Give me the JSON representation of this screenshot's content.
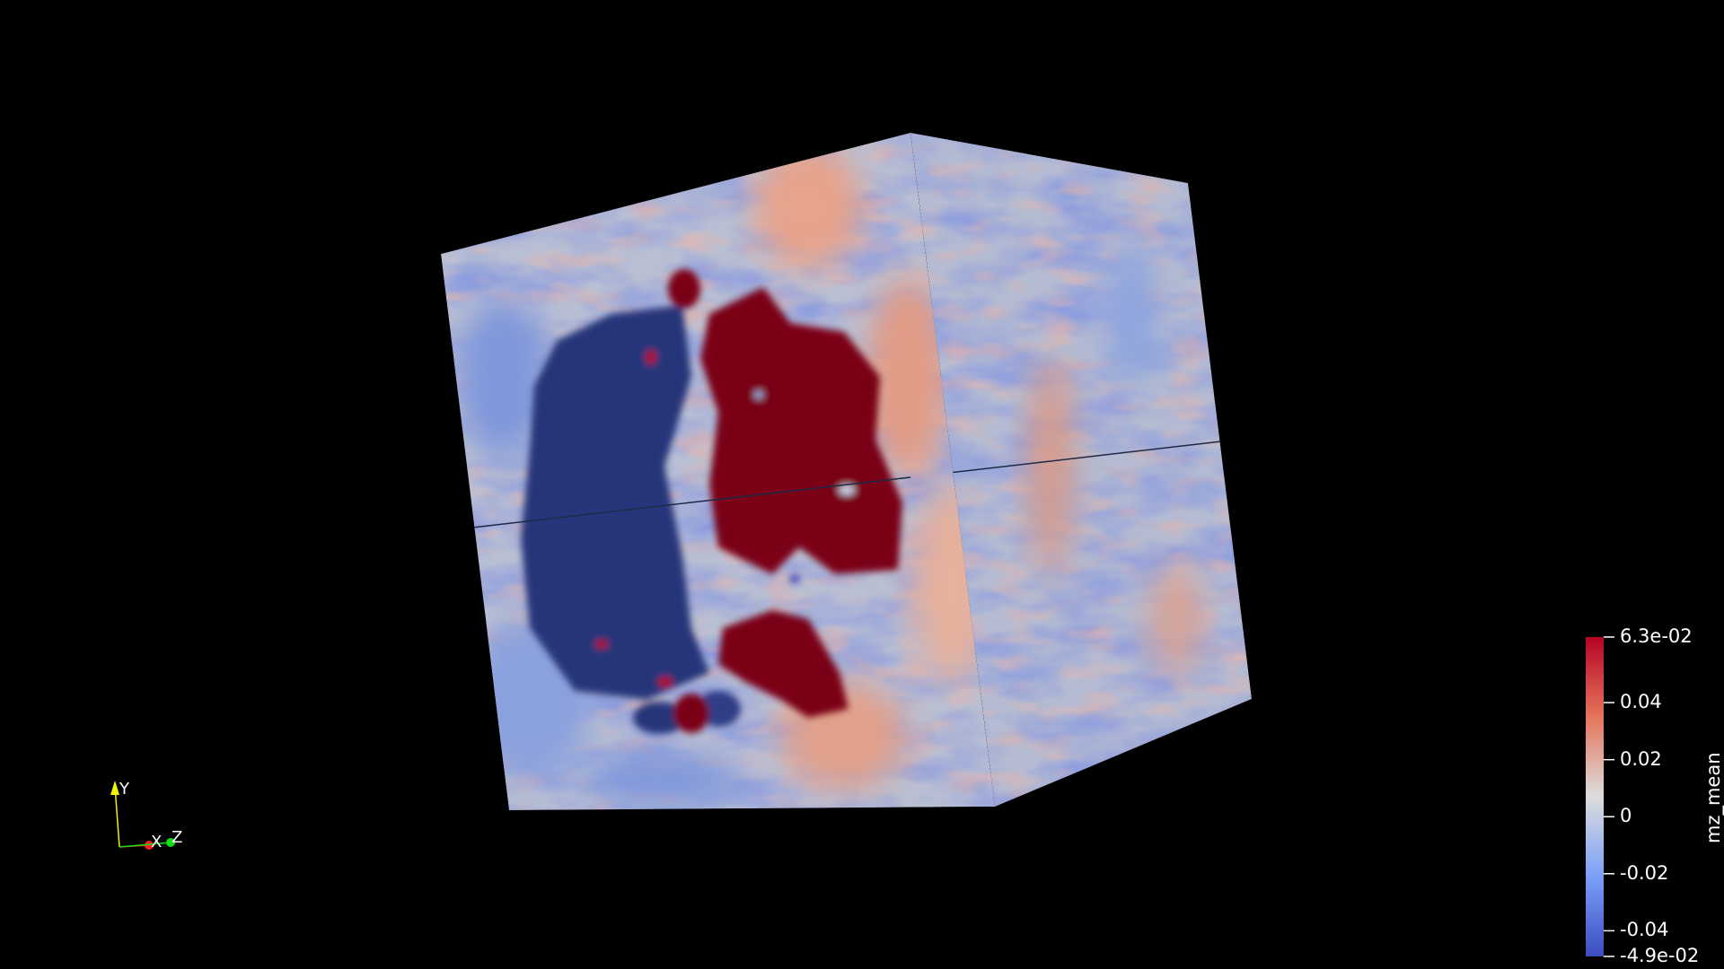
{
  "scene": {
    "background_color": "#000000",
    "object": "cube-volume",
    "colormap": "cool-to-warm"
  },
  "colorbar": {
    "title": "mz_mean",
    "max_label": "6.3e-02",
    "min_label": "-4.9e-02",
    "min": -0.049,
    "max": 0.063,
    "ticks": [
      {
        "value": 0.04,
        "label": "0.04"
      },
      {
        "value": 0.02,
        "label": "0.02"
      },
      {
        "value": 0.0,
        "label": "0"
      },
      {
        "value": -0.02,
        "label": "-0.02"
      },
      {
        "value": -0.04,
        "label": "-0.04"
      }
    ],
    "colors": {
      "high": "#b40426",
      "mid": "#dddddd",
      "low": "#3b4cc0"
    }
  },
  "orientation_axes": {
    "y_label": "Y",
    "x_label": "X",
    "z_label": "Z",
    "colors": {
      "x": "#ff2020",
      "y": "#f5f500",
      "z": "#10e010"
    }
  }
}
